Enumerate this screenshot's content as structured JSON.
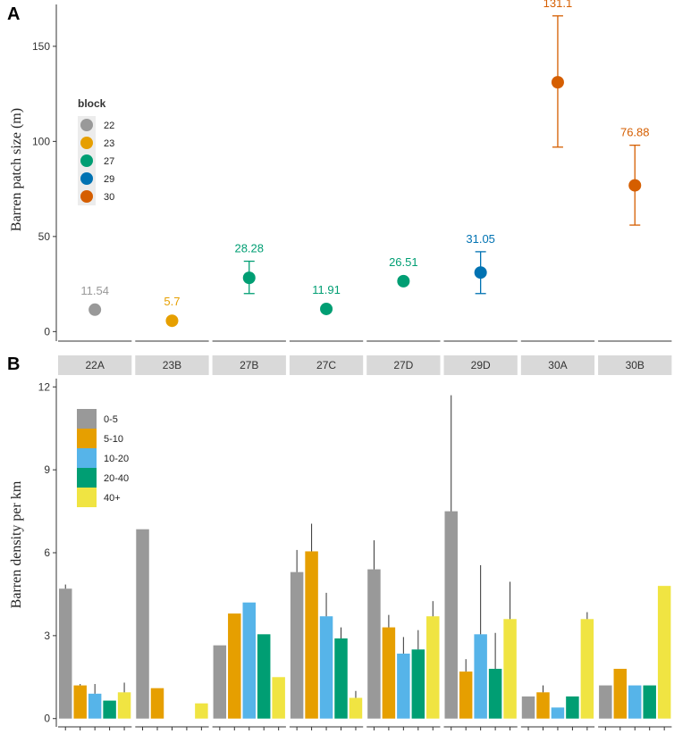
{
  "chart_data": [
    {
      "panel": "A",
      "type": "scatter",
      "ylabel": "Barren patch size (m)",
      "ylim": [
        -5,
        172
      ],
      "yticks": [
        0,
        50,
        100,
        150
      ],
      "legend": {
        "title": "block",
        "placement": "top-left",
        "entries": [
          {
            "name": "22",
            "color": "#999999"
          },
          {
            "name": "23",
            "color": "#E69F00"
          },
          {
            "name": "27",
            "color": "#009E73"
          },
          {
            "name": "29",
            "color": "#0072B2"
          },
          {
            "name": "30",
            "color": "#D55E00"
          }
        ]
      },
      "categories": [
        "22A",
        "23B",
        "27B",
        "27C",
        "27D",
        "29D",
        "30A",
        "30B"
      ],
      "points": [
        {
          "category": "22A",
          "block": "22",
          "value": 11.54,
          "label": "11.54",
          "lower": 11.54,
          "upper": 11.54
        },
        {
          "category": "23B",
          "block": "23",
          "value": 5.7,
          "label": "5.7",
          "lower": 5.7,
          "upper": 5.7
        },
        {
          "category": "27B",
          "block": "27",
          "value": 28.28,
          "label": "28.28",
          "lower": 20,
          "upper": 37
        },
        {
          "category": "27C",
          "block": "27",
          "value": 11.91,
          "label": "11.91",
          "lower": 11.91,
          "upper": 11.91
        },
        {
          "category": "27D",
          "block": "27",
          "value": 26.51,
          "label": "26.51",
          "lower": 25,
          "upper": 28
        },
        {
          "category": "29D",
          "block": "29",
          "value": 31.05,
          "label": "31.05",
          "lower": 20,
          "upper": 42
        },
        {
          "category": "30A",
          "block": "30",
          "value": 131.1,
          "label": "131.1",
          "lower": 97,
          "upper": 166
        },
        {
          "category": "30B",
          "block": "30",
          "value": 76.88,
          "label": "76.88",
          "lower": 56,
          "upper": 98
        }
      ]
    },
    {
      "panel": "B",
      "type": "bar",
      "ylabel": "Barren density per km",
      "ylim": [
        -0.3,
        12.3
      ],
      "yticks": [
        0,
        3,
        6,
        9,
        12
      ],
      "facets": [
        "22A",
        "23B",
        "27B",
        "27C",
        "27D",
        "29D",
        "30A",
        "30B"
      ],
      "legend": {
        "placement": "top-left",
        "entries": [
          {
            "name": "0-5",
            "color": "#999999"
          },
          {
            "name": "5-10",
            "color": "#E69F00"
          },
          {
            "name": "10-20",
            "color": "#56B4E9"
          },
          {
            "name": "20-40",
            "color": "#009E73"
          },
          {
            "name": "40+",
            "color": "#F0E442"
          }
        ]
      },
      "series": [
        {
          "name": "0-5",
          "values": [
            4.7,
            6.85,
            2.65,
            5.3,
            5.4,
            7.5,
            0.8,
            1.2
          ],
          "upper": [
            4.85,
            null,
            null,
            6.1,
            6.45,
            11.7,
            null,
            null
          ]
        },
        {
          "name": "5-10",
          "values": [
            1.2,
            1.1,
            3.8,
            6.05,
            3.3,
            1.7,
            0.95,
            1.8
          ],
          "upper": [
            1.25,
            null,
            null,
            7.05,
            3.75,
            2.15,
            1.2,
            null
          ]
        },
        {
          "name": "10-20",
          "values": [
            0.9,
            0,
            4.2,
            3.7,
            2.35,
            3.05,
            0.4,
            1.2
          ],
          "upper": [
            1.25,
            null,
            null,
            4.55,
            2.95,
            5.55,
            null,
            null
          ]
        },
        {
          "name": "20-40",
          "values": [
            0.65,
            0,
            3.05,
            2.9,
            2.5,
            1.8,
            0.8,
            1.2
          ],
          "upper": [
            null,
            null,
            null,
            3.3,
            3.2,
            3.1,
            null,
            null
          ]
        },
        {
          "name": "40+",
          "values": [
            0.95,
            0.55,
            1.5,
            0.75,
            3.7,
            3.6,
            3.6,
            4.8
          ],
          "upper": [
            1.3,
            null,
            null,
            1.0,
            4.25,
            4.95,
            3.85,
            null
          ]
        }
      ]
    }
  ]
}
